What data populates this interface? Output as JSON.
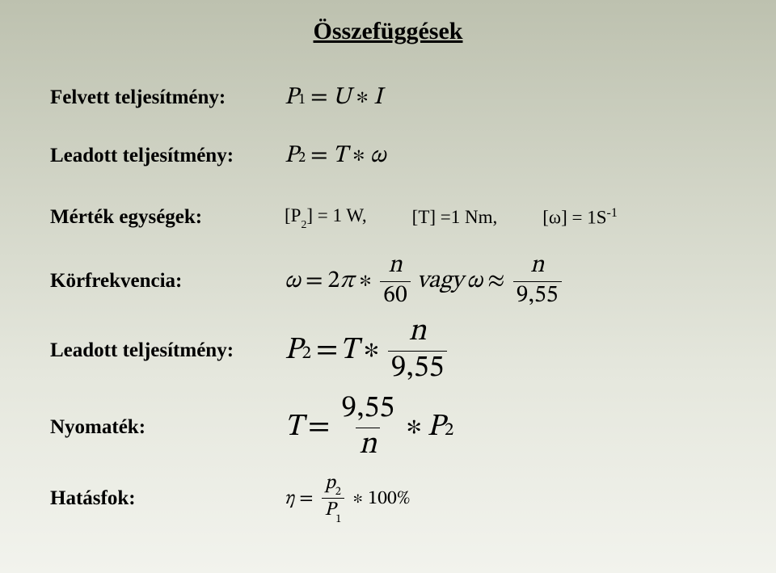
{
  "title": "Összefüggések",
  "rows": {
    "r1": {
      "label": "Felvett teljesítmény:"
    },
    "r2": {
      "label": "Leadott teljesítmény:"
    },
    "r3": {
      "label": "Mérték egységek:"
    },
    "r4": {
      "label": "Körfrekvencia:"
    },
    "r5": {
      "label": "Leadott teljesítmény:"
    },
    "r6": {
      "label": "Nyomaték:"
    },
    "r7": {
      "label": "Hatásfok:"
    }
  },
  "math": {
    "eq1": {
      "P": "P",
      "sub1": "1",
      "eq": "=",
      "U": "U",
      "ast": "∗",
      "I": "I"
    },
    "eq2": {
      "P": "P",
      "sub2": "2",
      "eq": "=",
      "T": "T",
      "ast": "∗",
      "omega": "ω"
    },
    "units": {
      "u1_open": "[P",
      "u1_sub": "2",
      "u1_close": "] = 1 W,",
      "u2": "[T] =1 Nm,",
      "u3_a": "[ω] = 1S",
      "u3_sup": "-1"
    },
    "eq4": {
      "omega1": "ω",
      "eq1": "=",
      "two": "2",
      "pi": "π",
      "ast": "∗",
      "num1": "n",
      "den1": "60",
      "vagy": "vagy",
      "omega2": "ω",
      "approx": "≈",
      "num2": "n",
      "den2": "9,55"
    },
    "eq5": {
      "P": "P",
      "sub2": "2",
      "eq": "=",
      "T": "T",
      "ast": "∗",
      "num": "n",
      "den": "9,55"
    },
    "eq6": {
      "T": "T",
      "eq": "=",
      "num": "9,55",
      "den": "n",
      "ast": "∗",
      "P": "P",
      "sub2": "2"
    },
    "eq7": {
      "eta": "η",
      "eq": "=",
      "num_p": "p",
      "num_sub": "2",
      "den_P": "P",
      "den_sub": "1",
      "ast": "∗",
      "pct": "100%"
    }
  },
  "style": {
    "title_fontsize": 30,
    "label_fontsize": 25,
    "math_size_small": 24,
    "math_size_med": 30,
    "math_size_large": 38,
    "text_color": "#000000",
    "bg_gradient_top": "#bdc1af",
    "bg_gradient_bottom": "#f2f3ed",
    "fraction_rule_width": 1.6
  }
}
